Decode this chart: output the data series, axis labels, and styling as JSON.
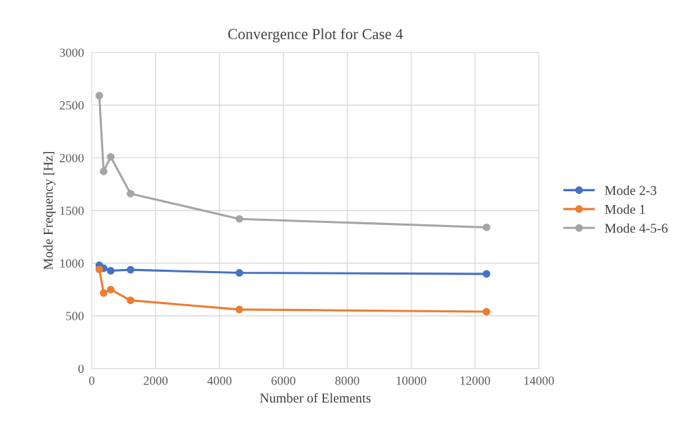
{
  "chart_data": {
    "type": "line",
    "title": "Convergence Plot for Case 4",
    "xlabel": "Number of Elements",
    "ylabel": "Mode Frequency [Hz]",
    "series": [
      {
        "name": "Mode 2-3",
        "color": "#4472c4",
        "x": [
          236,
          371,
          593,
          1214,
          4621,
          12360
        ],
        "values": [
          980,
          952,
          928,
          937,
          908,
          898
        ]
      },
      {
        "name": "Mode 1",
        "color": "#ed7d31",
        "x": [
          236,
          371,
          593,
          1214,
          4621,
          12360
        ],
        "values": [
          941,
          717,
          749,
          647,
          560,
          539
        ]
      },
      {
        "name": "Mode 4-5-6",
        "color": "#a5a5a5",
        "x": [
          236,
          371,
          593,
          1214,
          4621,
          12360
        ],
        "values": [
          2590,
          1871,
          2009,
          1660,
          1420,
          1340
        ]
      }
    ],
    "xlim": [
      0,
      14000
    ],
    "xticks": [
      0,
      2000,
      4000,
      6000,
      8000,
      10000,
      12000,
      14000
    ],
    "ylim": [
      0,
      3000
    ],
    "yticks": [
      0,
      500,
      1000,
      1500,
      2000,
      2500,
      3000
    ],
    "grid": true,
    "legend": "right",
    "marker": "circle",
    "line_style": "solid"
  }
}
